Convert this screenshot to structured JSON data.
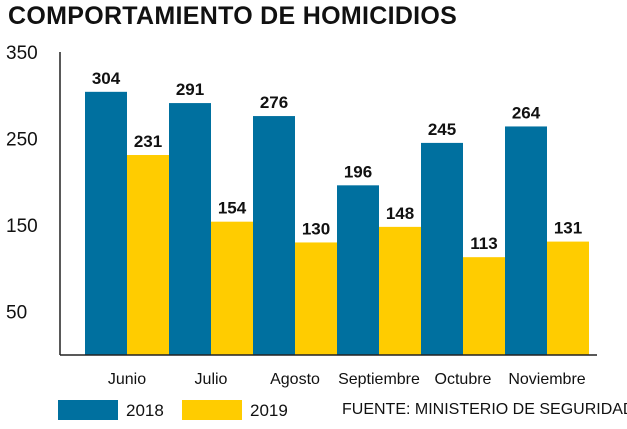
{
  "title": "COMPORTAMIENTO DE HOMICIDIOS",
  "source": "FUENTE: MINISTERIO DE SEGURIDAD",
  "colors": {
    "2018": "#00709f",
    "2019": "#ffcc00",
    "axis": "#222222"
  },
  "chart_data": {
    "type": "bar",
    "title": "COMPORTAMIENTO DE HOMICIDIOS",
    "categories": [
      "Junio",
      "Julio",
      "Agosto",
      "Septiembre",
      "Octubre",
      "Noviembre"
    ],
    "series": [
      {
        "name": "2018",
        "values": [
          304,
          291,
          276,
          196,
          245,
          264
        ]
      },
      {
        "name": "2019",
        "values": [
          231,
          154,
          130,
          148,
          113,
          131
        ]
      }
    ],
    "yticks": [
      350,
      250,
      150,
      50
    ],
    "ylim": [
      0,
      350
    ],
    "grid": false,
    "legend": "bottom-left"
  }
}
